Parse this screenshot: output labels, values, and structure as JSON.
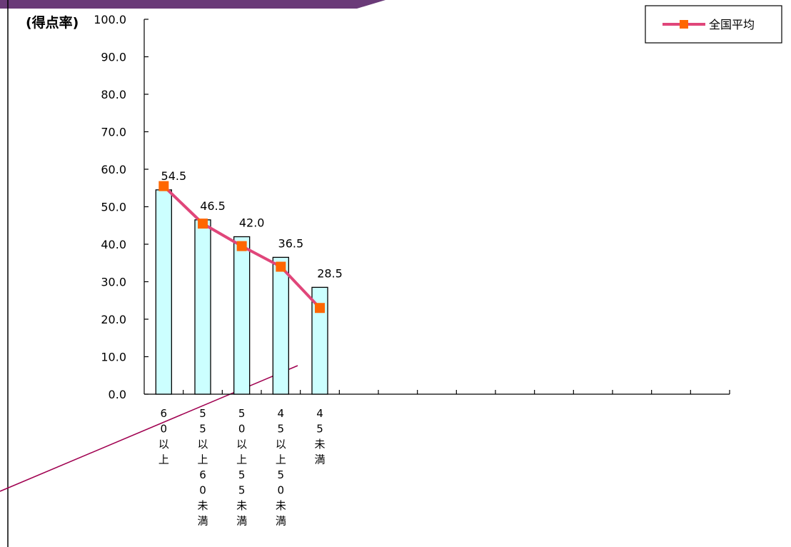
{
  "colors": {
    "bar_fill": "#ccffff",
    "bar_stroke": "#000000",
    "line": "#e0467a",
    "marker": "#ff6600",
    "header_band": "#6a3a78",
    "diagonal": "#a00050"
  },
  "chart_data": {
    "type": "bar",
    "ylabel": "(得点率)",
    "ylim": [
      0,
      100
    ],
    "yticks": [
      "0.0",
      "10.0",
      "20.0",
      "30.0",
      "40.0",
      "50.0",
      "60.0",
      "70.0",
      "80.0",
      "90.0",
      "100.0"
    ],
    "category_slots": 15,
    "categories": [
      "60以上",
      "55以上60未満",
      "50以上55未満",
      "45以上50未満",
      "45未満"
    ],
    "category_labels": [
      [
        "6",
        "0",
        "以",
        "上"
      ],
      [
        "5",
        "5",
        "以",
        "上",
        "6",
        "0",
        "未",
        "満"
      ],
      [
        "5",
        "0",
        "以",
        "上",
        "5",
        "5",
        "未",
        "満"
      ],
      [
        "4",
        "5",
        "以",
        "上",
        "5",
        "0",
        "未",
        "満"
      ],
      [
        "4",
        "5",
        "未",
        "満"
      ]
    ],
    "values": [
      54.5,
      46.5,
      42.0,
      36.5,
      28.5
    ],
    "value_labels": [
      "54.5",
      "46.5",
      "42.0",
      "36.5",
      "28.5"
    ],
    "line_series": {
      "name": "全国平均",
      "values": [
        55.5,
        45.5,
        39.5,
        34.0,
        23.0
      ]
    },
    "legend_position": "top-right",
    "grid": false
  }
}
